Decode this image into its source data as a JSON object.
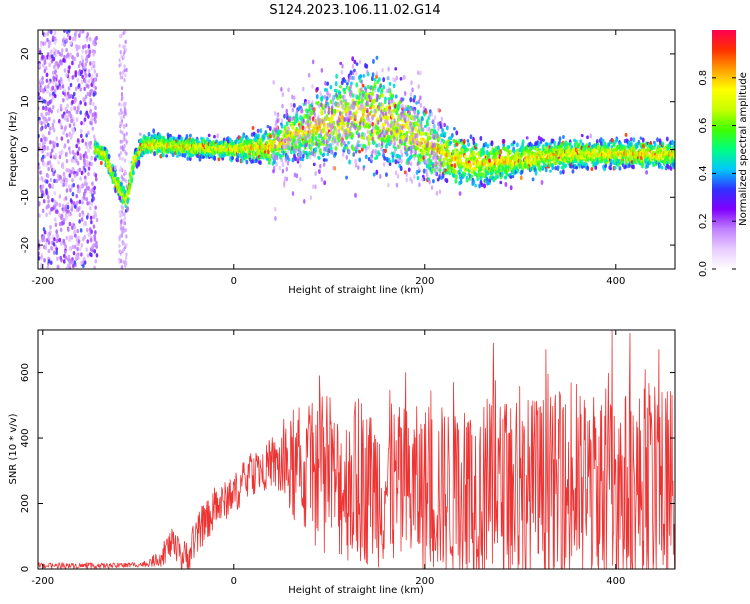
{
  "title": "S124.2023.106.11.02.G14",
  "colors": {
    "snr_line": "#ee3333",
    "axis": "#000000",
    "background": "#ffffff"
  },
  "colorbar": {
    "label": "Normalized spectral amplitude",
    "range": [
      0.0,
      1.0
    ],
    "ticks": [
      "0.0",
      "0.2",
      "0.4",
      "0.6",
      "0.8"
    ],
    "tick_values": [
      0.0,
      0.2,
      0.4,
      0.6,
      0.8
    ],
    "colormap": [
      "#ffffff",
      "#e8ccff",
      "#c080ff",
      "#8000ff",
      "#3030ff",
      "#00c8ff",
      "#00ff80",
      "#40ff00",
      "#c8ff00",
      "#ffff00",
      "#ffa000",
      "#ff3000",
      "#ff0050"
    ]
  },
  "chart_data": [
    {
      "type": "heatmap",
      "name": "spectrogram",
      "xlabel": "Height of straight line (km)",
      "ylabel": "Frequency (Hz)",
      "xlim": [
        -205,
        462
      ],
      "ylim": [
        -25,
        25
      ],
      "x_ticks": [
        "-200",
        "0",
        "200",
        "400"
      ],
      "x_tick_values": [
        -200,
        0,
        200,
        400
      ],
      "y_ticks": [
        "-20",
        "-10",
        "0",
        "10",
        "20"
      ],
      "y_tick_values": [
        -20,
        -10,
        0,
        10,
        20
      ],
      "trace_center": [
        [
          -145,
          0
        ],
        [
          -135,
          -1
        ],
        [
          -125,
          -6
        ],
        [
          -112,
          -11
        ],
        [
          -105,
          -3
        ],
        [
          -95,
          1
        ],
        [
          -85,
          1
        ],
        [
          -50,
          0.5
        ],
        [
          0,
          0
        ],
        [
          40,
          0.5
        ],
        [
          60,
          3
        ],
        [
          90,
          5
        ],
        [
          120,
          7
        ],
        [
          150,
          7
        ],
        [
          180,
          4
        ],
        [
          200,
          1
        ],
        [
          230,
          -2
        ],
        [
          260,
          -3
        ],
        [
          300,
          -2
        ],
        [
          350,
          -1
        ],
        [
          400,
          -1
        ],
        [
          462,
          -1
        ]
      ],
      "trace_spread": [
        [
          -145,
          1.2
        ],
        [
          -100,
          1.5
        ],
        [
          0,
          1.5
        ],
        [
          50,
          3
        ],
        [
          100,
          6
        ],
        [
          140,
          8
        ],
        [
          180,
          6
        ],
        [
          220,
          4
        ],
        [
          300,
          2.5
        ],
        [
          400,
          2
        ],
        [
          462,
          2
        ]
      ],
      "noise_band_x": [
        -205,
        -143
      ],
      "noise_strip_x": [
        -120,
        -112
      ]
    },
    {
      "type": "line",
      "name": "snr",
      "xlabel": "Height of straight line (km)",
      "ylabel": "SNR (10 * v/v)",
      "xlim": [
        -205,
        462
      ],
      "ylim": [
        0,
        730
      ],
      "x_ticks": [
        "-200",
        "0",
        "200",
        "400"
      ],
      "x_tick_values": [
        -200,
        0,
        200,
        400
      ],
      "y_ticks": [
        "0",
        "200",
        "400",
        "600"
      ],
      "y_tick_values": [
        0,
        200,
        400,
        600
      ],
      "envelope_mean": [
        [
          -205,
          10
        ],
        [
          -120,
          10
        ],
        [
          -90,
          15
        ],
        [
          -75,
          40
        ],
        [
          -65,
          80
        ],
        [
          -55,
          30
        ],
        [
          -45,
          50
        ],
        [
          -35,
          120
        ],
        [
          -20,
          180
        ],
        [
          0,
          230
        ],
        [
          20,
          290
        ],
        [
          40,
          320
        ],
        [
          60,
          300
        ],
        [
          100,
          260
        ],
        [
          200,
          240
        ],
        [
          300,
          230
        ],
        [
          462,
          240
        ]
      ],
      "envelope_amplitude": [
        [
          -205,
          8
        ],
        [
          -90,
          8
        ],
        [
          -70,
          40
        ],
        [
          -40,
          60
        ],
        [
          0,
          60
        ],
        [
          40,
          70
        ],
        [
          60,
          160
        ],
        [
          100,
          230
        ],
        [
          200,
          260
        ],
        [
          300,
          300
        ],
        [
          462,
          320
        ]
      ],
      "peak_values": [
        [
          -70,
          90
        ],
        [
          50,
          400
        ],
        [
          90,
          590
        ],
        [
          180,
          600
        ],
        [
          230,
          570
        ],
        [
          272,
          690
        ],
        [
          327,
          670
        ],
        [
          396,
          730
        ],
        [
          415,
          720
        ],
        [
          445,
          670
        ]
      ]
    }
  ]
}
